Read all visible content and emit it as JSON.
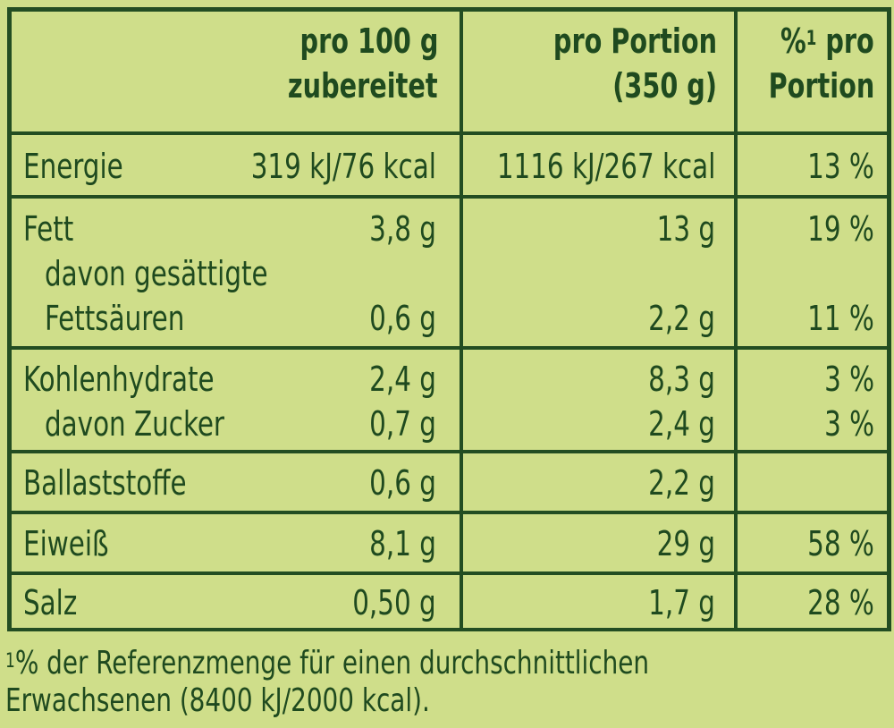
{
  "header": {
    "col1": [
      "pro 100 g",
      "zubereitet"
    ],
    "col2": [
      "pro Portion",
      "(350 g)"
    ],
    "col3_sup": "1",
    "col3_a": "%",
    "col3_b": " pro",
    "col3_line2": "Portion"
  },
  "rows": [
    {
      "label": "Energie",
      "per100": "319 kJ/76 kcal",
      "portion": "1116 kJ/267 kcal",
      "pct": "13 %"
    },
    {
      "label": "Fett",
      "per100": "3,8 g",
      "portion": "13 g",
      "pct": "19 %"
    },
    {
      "label": "davon gesättigte",
      "per100": "",
      "portion": "",
      "pct": ""
    },
    {
      "label": "Fettsäuren",
      "per100": "0,6 g",
      "portion": "2,2 g",
      "pct": "11 %"
    },
    {
      "label": "Kohlenhydrate",
      "per100": "2,4 g",
      "portion": "8,3 g",
      "pct": "3 %"
    },
    {
      "label": "davon Zucker",
      "per100": "0,7 g",
      "portion": "2,4 g",
      "pct": "3 %"
    },
    {
      "label": "Ballaststoffe",
      "per100": "0,6 g",
      "portion": "2,2 g",
      "pct": ""
    },
    {
      "label": "Eiweiß",
      "per100": "8,1 g",
      "portion": "29 g",
      "pct": "58 %"
    },
    {
      "label": "Salz",
      "per100": "0,50 g",
      "portion": "1,7 g",
      "pct": "28 %"
    }
  ],
  "footnote": {
    "sup": "1",
    "line1": "% der Referenzmenge für einen durchschnittlichen",
    "line2": "Erwachsenen (8400 kJ/2000 kcal)."
  }
}
